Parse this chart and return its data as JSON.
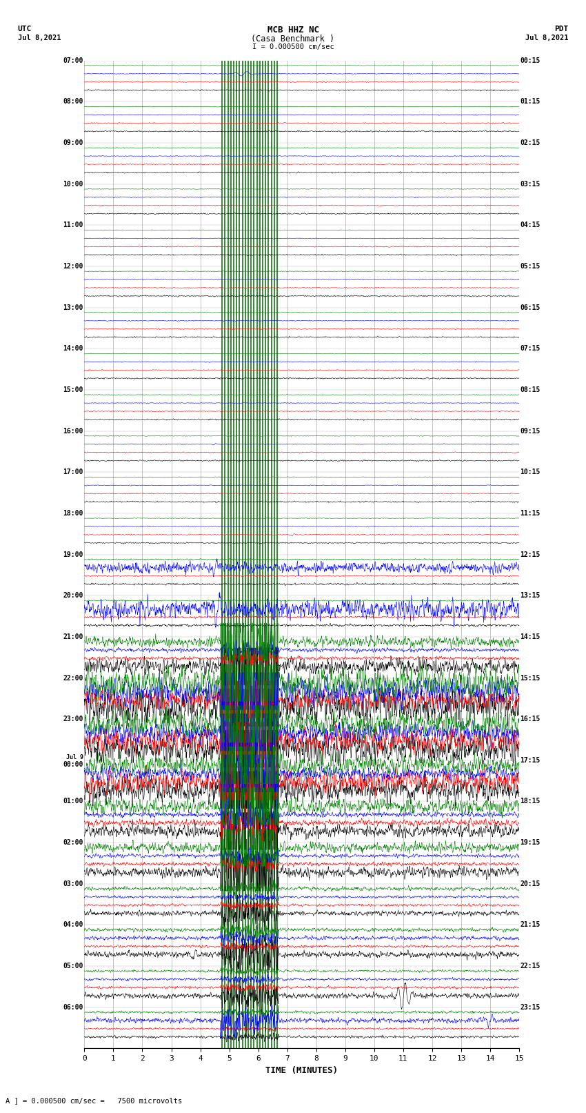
{
  "title_line1": "MCB HHZ NC",
  "title_line2": "(Casa Benchmark )",
  "title_line3": "I = 0.000500 cm/sec",
  "left_label_top": "UTC",
  "left_label_date": "Jul 8,2021",
  "right_label_top": "PDT",
  "right_label_date": "Jul 8,2021",
  "bottom_label": "TIME (MINUTES)",
  "bottom_note": "A ] = 0.000500 cm/sec =   7500 microvolts",
  "utc_times": [
    "07:00",
    "08:00",
    "09:00",
    "10:00",
    "11:00",
    "12:00",
    "13:00",
    "14:00",
    "15:00",
    "16:00",
    "17:00",
    "18:00",
    "19:00",
    "20:00",
    "21:00",
    "22:00",
    "23:00",
    "Jul 9\n00:00",
    "01:00",
    "02:00",
    "03:00",
    "04:00",
    "05:00",
    "06:00"
  ],
  "pdt_times": [
    "00:15",
    "01:15",
    "02:15",
    "03:15",
    "04:15",
    "05:15",
    "06:15",
    "07:15",
    "08:15",
    "09:15",
    "10:15",
    "11:15",
    "12:15",
    "13:15",
    "14:15",
    "15:15",
    "16:15",
    "17:15",
    "18:15",
    "19:15",
    "20:15",
    "21:15",
    "22:15",
    "23:15"
  ],
  "n_rows": 24,
  "x_min": 0,
  "x_max": 15,
  "x_ticks": [
    0,
    1,
    2,
    3,
    4,
    5,
    6,
    7,
    8,
    9,
    10,
    11,
    12,
    13,
    14,
    15
  ],
  "colors": [
    "black",
    "red",
    "blue",
    "green"
  ],
  "bg_color": "#ffffff",
  "grid_color": "#999999",
  "seismo_lw": 0.4,
  "quiet_amp": 0.012,
  "green_lines_x": [
    4.75,
    4.85,
    4.95,
    5.05,
    5.15,
    5.25,
    5.35,
    5.45,
    5.55,
    5.65,
    5.75,
    5.85,
    5.95,
    6.05,
    6.15,
    6.25,
    6.35,
    6.45,
    6.55,
    6.65
  ],
  "green_line_color": "darkgreen"
}
